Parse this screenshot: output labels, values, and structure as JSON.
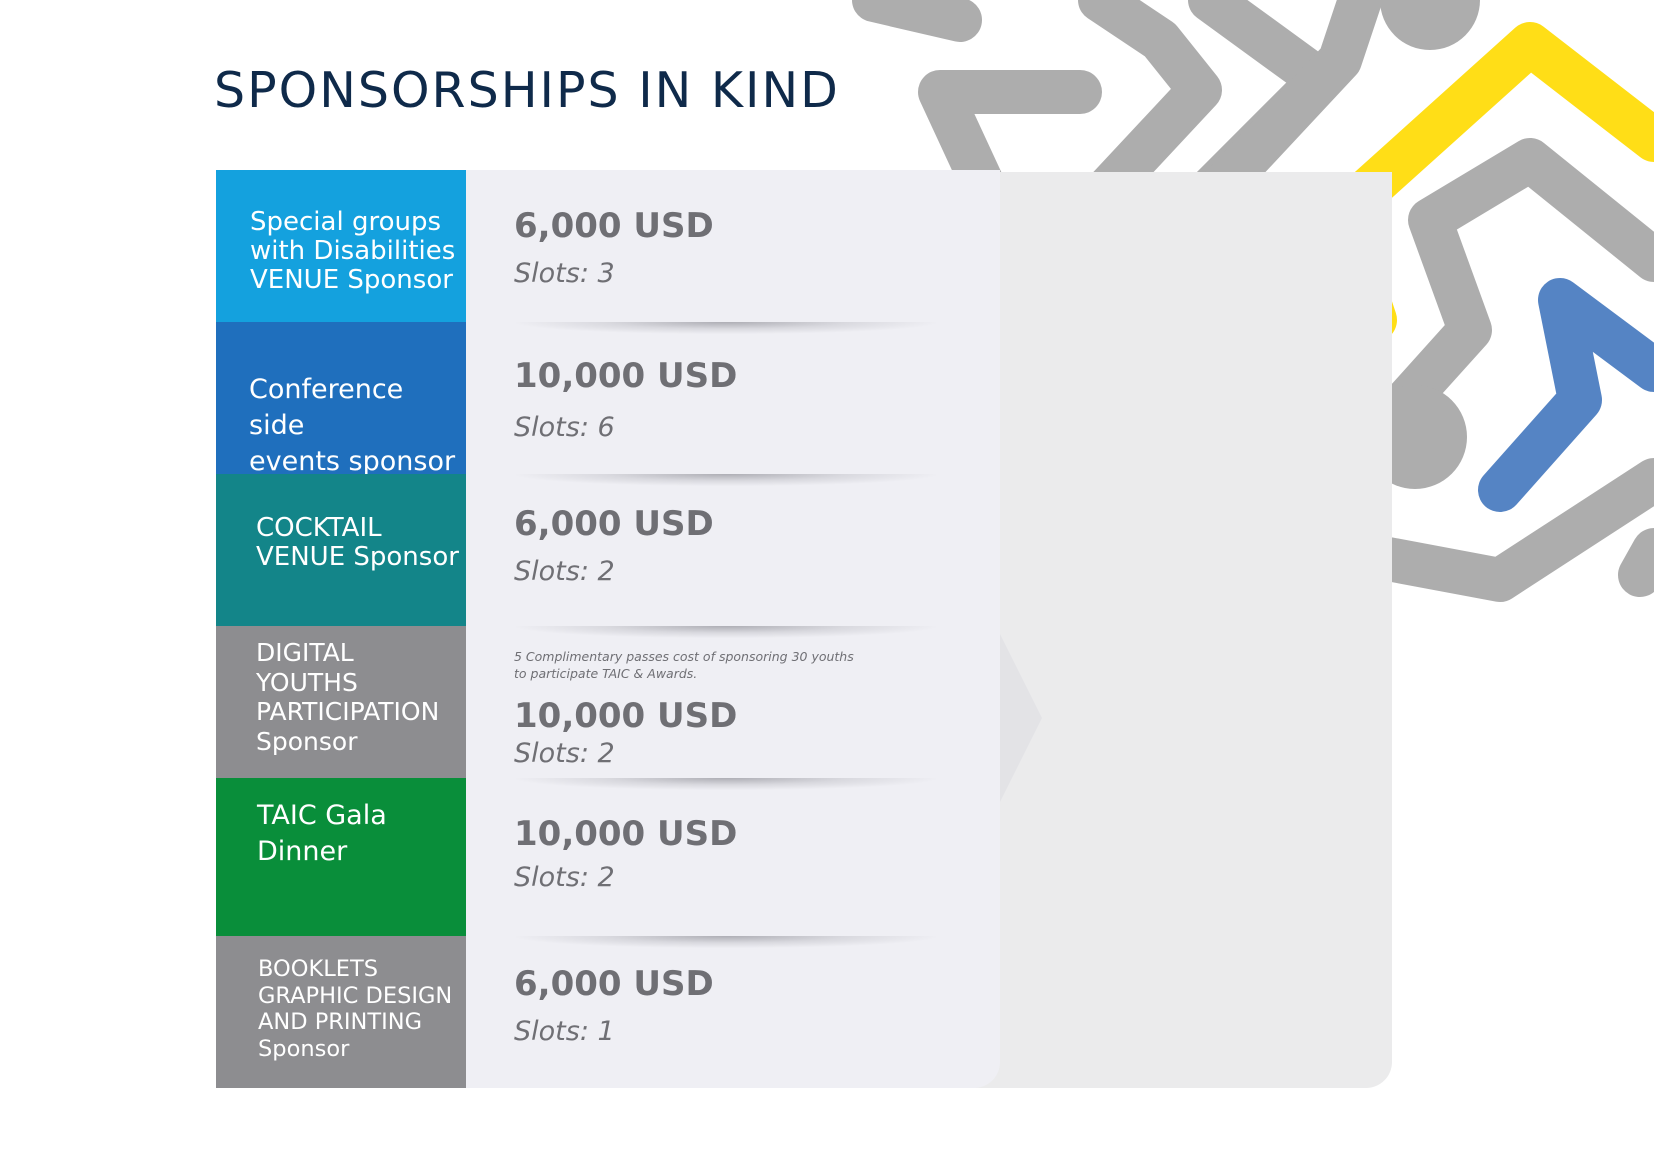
{
  "title": "SPONSORSHIPS IN KIND",
  "colors": {
    "title": "#0f2a4a",
    "price_text": "#6f6f74",
    "card_bg": "#efeff4",
    "back_panel": "#ebebec",
    "deco_grey": "#adadad",
    "deco_yellow": "#ffde17",
    "deco_blue": "#5584c4"
  },
  "sponsorships": [
    {
      "label": "Special groups\nwith Disabilities\nVENUE Sponsor",
      "color": "#14a1de",
      "price": "6,000 USD",
      "slots": "Slots: 3",
      "note": ""
    },
    {
      "label": "Conference side\nevents sponsor",
      "color": "#1f6fbd",
      "price": "10,000 USD",
      "slots": "Slots: 6",
      "note": ""
    },
    {
      "label": "COCKTAIL\nVENUE Sponsor",
      "color": "#138589",
      "price": "6,000 USD",
      "slots": "Slots: 2",
      "note": ""
    },
    {
      "label": "DIGITAL\nYOUTHS\nPARTICIPATION\nSponsor",
      "color": "#8d8d90",
      "price": "10,000 USD",
      "slots": "Slots: 2",
      "note": "5 Complimentary passes cost of sponsoring 30 youths\nto participate TAIC & Awards."
    },
    {
      "label": "TAIC Gala\nDinner",
      "color": "#098e3a",
      "price": "10,000 USD",
      "slots": "Slots: 2",
      "note": ""
    },
    {
      "label": "BOOKLETS\nGRAPHIC DESIGN\nAND PRINTING\nSponsor",
      "color": "#8d8d90",
      "price": "6,000 USD",
      "slots": "Slots: 1",
      "note": ""
    }
  ]
}
